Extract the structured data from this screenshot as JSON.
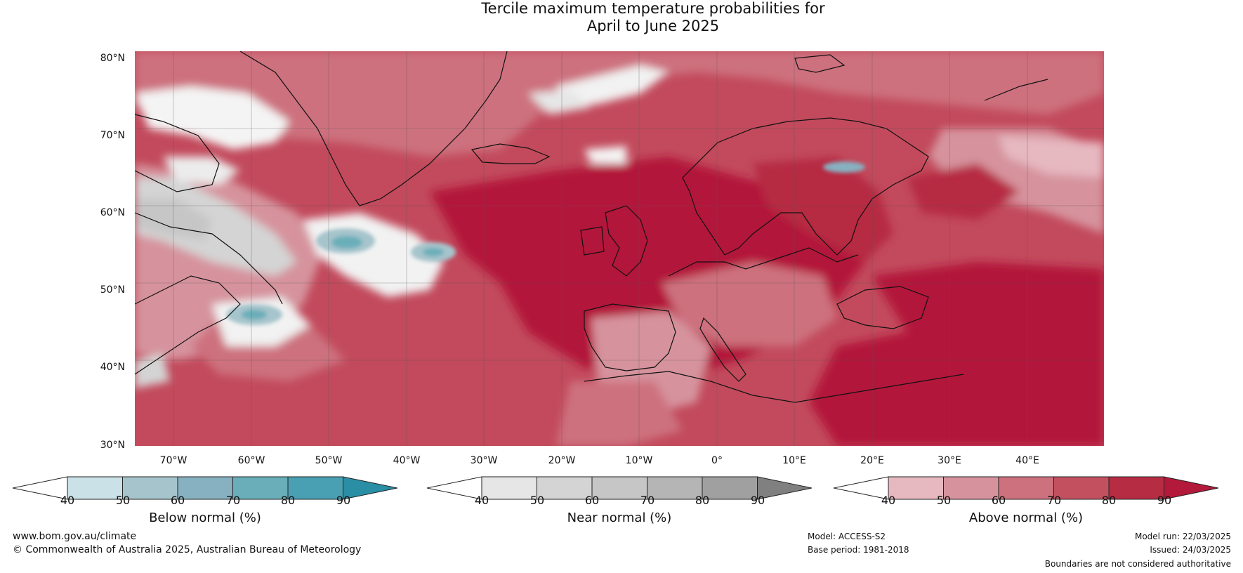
{
  "title": {
    "line1": "Tercile maximum temperature probabilities for",
    "line2": "April to June 2025"
  },
  "map": {
    "lat_labels": [
      "80°N",
      "70°N",
      "60°N",
      "50°N",
      "40°N",
      "30°N"
    ],
    "lon_labels": [
      "70°W",
      "60°W",
      "50°W",
      "40°W",
      "30°W",
      "20°W",
      "10°W",
      "0°",
      "10°E",
      "20°E",
      "30°E",
      "40°E"
    ]
  },
  "colorbars": [
    {
      "title": "Below normal (%)",
      "ticks": [
        "40",
        "50",
        "60",
        "70",
        "80",
        "90"
      ],
      "colors": [
        "#ffffff",
        "#c9e1e7",
        "#a6c4cc",
        "#87b1c1",
        "#6aaeb9",
        "#4aa0b3",
        "#2a8fa4"
      ]
    },
    {
      "title": "Near normal (%)",
      "ticks": [
        "40",
        "50",
        "60",
        "70",
        "80",
        "90"
      ],
      "colors": [
        "#ffffff",
        "#e6e6e6",
        "#d4d4d4",
        "#c6c6c6",
        "#b5b5b5",
        "#a0a0a0",
        "#808080"
      ]
    },
    {
      "title": "Above normal (%)",
      "ticks": [
        "40",
        "50",
        "60",
        "70",
        "80",
        "90"
      ],
      "colors": [
        "#ffffff",
        "#e6b8c0",
        "#d6939d",
        "#cd717e",
        "#c2505f",
        "#b62c42",
        "#b3193b"
      ]
    }
  ],
  "footer": {
    "website": "www.bom.gov.au/climate",
    "copyright": "© Commonwealth of Australia 2025, Australian Bureau of Meteorology",
    "model": "Model: ACCESS-S2",
    "base_period": "Base period: 1981-2018",
    "model_run": "Model run: 22/03/2025",
    "issued": "Issued: 24/03/2025",
    "disclaimer": "Boundaries are not considered authoritative"
  }
}
